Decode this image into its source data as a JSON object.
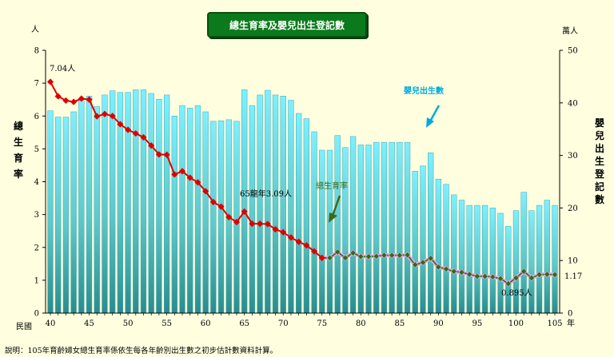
{
  "chart_data": {
    "type": "bar+line",
    "title": "總生育率及嬰兒出生登記數",
    "left_axis_unit": "人",
    "right_axis_unit": "萬人",
    "left_axis_label": "總生育率",
    "right_axis_label": "嬰兒出生登記數",
    "x_axis_label_prefix": "民國",
    "x_axis_label_suffix": "年",
    "left_ylim": [
      0,
      8
    ],
    "right_ylim": [
      0,
      50
    ],
    "left_ticks": [
      "0",
      "1",
      "2",
      "3",
      "4",
      "5",
      "6",
      "7",
      "8"
    ],
    "right_ticks": [
      "0",
      "10",
      "20",
      "30",
      "40",
      "50"
    ],
    "x_ticks": [
      "40",
      "45",
      "50",
      "55",
      "60",
      "65",
      "70",
      "75",
      "80",
      "85",
      "90",
      "95",
      "100",
      "105"
    ],
    "years": [
      40,
      41,
      42,
      43,
      44,
      45,
      46,
      47,
      48,
      49,
      50,
      51,
      52,
      53,
      54,
      55,
      56,
      57,
      58,
      59,
      60,
      61,
      62,
      63,
      64,
      65,
      66,
      67,
      68,
      69,
      70,
      71,
      72,
      73,
      74,
      75,
      76,
      77,
      78,
      79,
      80,
      81,
      82,
      83,
      84,
      85,
      86,
      87,
      88,
      89,
      90,
      91,
      92,
      93,
      94,
      95,
      96,
      97,
      98,
      99,
      100,
      101,
      102,
      103,
      104,
      105
    ],
    "series": [
      {
        "name": "嬰兒出生數",
        "axis": "right",
        "type": "bar",
        "color": "#7fefff",
        "values": [
          38.5,
          37.3,
          37.3,
          38.3,
          40.5,
          41.3,
          39.3,
          41.5,
          42.3,
          42.0,
          42.0,
          42.5,
          42.5,
          41.8,
          40.7,
          41.5,
          37.5,
          39.5,
          39.0,
          39.5,
          38.3,
          36.5,
          36.6,
          36.8,
          36.5,
          42.5,
          39.5,
          41.5,
          42.4,
          41.5,
          41.3,
          40.5,
          38.0,
          37.0,
          34.5,
          31.0,
          31.0,
          33.8,
          31.5,
          33.6,
          32.0,
          32.0,
          32.5,
          32.5,
          32.5,
          32.5,
          32.5,
          27.0,
          28.0,
          30.5,
          25.5,
          24.5,
          22.5,
          21.5,
          20.5,
          20.5,
          20.5,
          20.0,
          19.0,
          16.5,
          19.5,
          23.0,
          19.5,
          20.5,
          21.5,
          20.5
        ]
      },
      {
        "name": "總生育率",
        "axis": "left",
        "type": "line",
        "color": "#dd0000",
        "values": [
          7.04,
          6.6,
          6.47,
          6.43,
          6.53,
          6.5,
          5.99,
          6.06,
          6.0,
          5.75,
          5.58,
          5.47,
          5.35,
          5.1,
          4.83,
          4.82,
          4.22,
          4.32,
          4.12,
          3.98,
          3.71,
          3.38,
          3.24,
          2.92,
          2.77,
          3.09,
          2.72,
          2.72,
          2.71,
          2.55,
          2.46,
          2.3,
          2.17,
          2.06,
          1.88,
          1.68,
          1.68,
          1.86,
          1.68,
          1.83,
          1.72,
          1.72,
          1.73,
          1.76,
          1.76,
          1.76,
          1.77,
          1.47,
          1.54,
          1.67,
          1.4,
          1.34,
          1.27,
          1.24,
          1.18,
          1.12,
          1.12,
          1.1,
          1.05,
          0.895,
          1.07,
          1.27,
          1.07,
          1.17,
          1.18,
          1.17
        ]
      }
    ],
    "annotations": {
      "first_value": "7.04人",
      "peak65": "65龍年3.09人",
      "tfr_label": "總生育率",
      "births_label": "嬰兒出生數",
      "min_value": "0.895人",
      "last_value": "1.17"
    },
    "colors": {
      "background": "#ffffe0",
      "bar_top": "#7fefff",
      "bar_bottom": "#2a8c8c",
      "line": "#dd0000",
      "line_late": "#2e6b1c",
      "marker_halo": "#e9a8e0",
      "annotation_cyan": "#00aadd",
      "annotation_green": "#3b6b1a"
    }
  },
  "note": "說明：105年育齡婦女總生育率係依生每各年齡別出生數之初步估計數資料計算。"
}
